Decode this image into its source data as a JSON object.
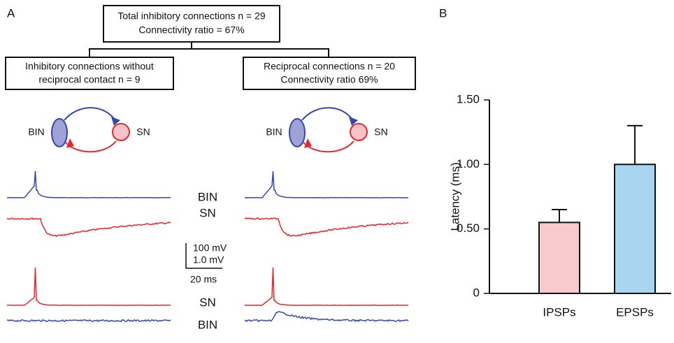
{
  "figure": {
    "panel_a_label": "A",
    "panel_b_label": "B",
    "top_box": [
      "Total inhibitory connections n = 29",
      "Connectivity ratio = 67%"
    ],
    "left_box": [
      "Inhibitory connections without",
      "reciprocal contact n = 9"
    ],
    "right_box": [
      "Reciprocal connections n = 20",
      "Connectivity ratio 69%"
    ],
    "left_diagram": {
      "bin": "BIN",
      "sn": "SN"
    },
    "right_diagram": {
      "bin": "BIN",
      "sn": "SN"
    },
    "trace_labels": [
      "BIN",
      "SN",
      "SN",
      "BIN"
    ],
    "scale_bar": [
      "100 mV",
      "1.0 mV",
      "20 ms"
    ]
  },
  "chart_data": {
    "type": "bar",
    "ylabel": "Latency (ms)",
    "categories": [
      "IPSPs",
      "EPSPs"
    ],
    "values": [
      0.55,
      1.0
    ],
    "errors": [
      0.1,
      0.3
    ],
    "colors": [
      "#f9cacd",
      "#a8d5f0"
    ],
    "ylim": [
      0,
      1.5
    ],
    "yticks": [
      0,
      {
        "value": 0.5,
        "label": "0.50"
      },
      {
        "value": 1.0,
        "label": "1.00"
      },
      {
        "value": 1.5,
        "label": "1.50"
      }
    ]
  }
}
